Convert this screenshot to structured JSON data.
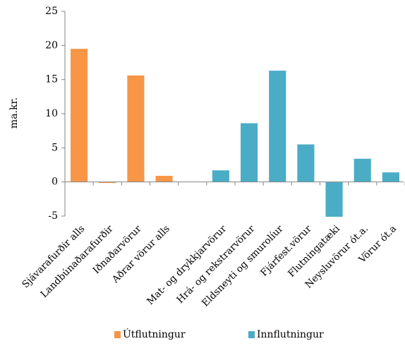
{
  "chart_data": {
    "type": "bar",
    "ylabel": "ma.kr.",
    "ylim": [
      -5,
      25
    ],
    "yticks": [
      -5,
      0,
      5,
      10,
      15,
      20,
      25
    ],
    "grid": false,
    "legend_position": "bottom",
    "categories": [
      "Sjávarafurðir alls",
      "Landbúnaðarafurðir",
      "Iðnaðarvörur",
      "Aðrar vörur alls",
      "",
      "Mat- og drykkjarvörur",
      "Hrá- og rekstrarvörur",
      "Eldsneyti og smurolíur",
      "Fjárfest.vörur",
      "Flutningatæki",
      "Neysluvörur ót.a.",
      "Vörur ót.a"
    ],
    "series": [
      {
        "name": "Útflutningur",
        "color": "#f79646",
        "values": [
          19.5,
          -0.15,
          15.6,
          0.9,
          null,
          null,
          null,
          null,
          null,
          null,
          null,
          null
        ]
      },
      {
        "name": "Innflutningur",
        "color": "#4bacc6",
        "values": [
          null,
          null,
          null,
          null,
          null,
          1.7,
          8.6,
          16.3,
          5.5,
          -5.1,
          3.4,
          1.4
        ]
      }
    ]
  }
}
